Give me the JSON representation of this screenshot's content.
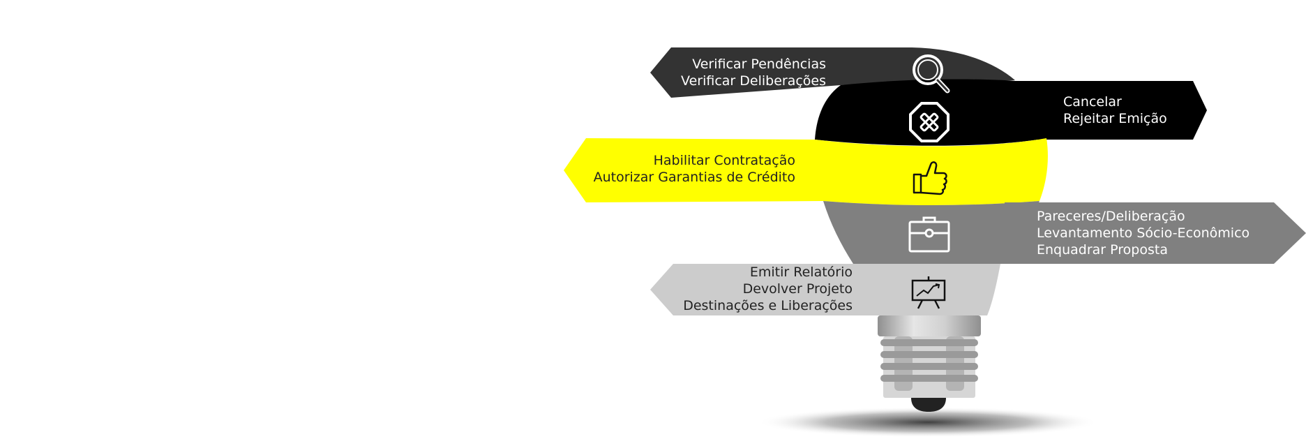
{
  "colors": {
    "band1": "#333333",
    "band2": "#000000",
    "band3": "#ffff00",
    "band4": "#808080",
    "band5": "#cccccc",
    "base_metal": "#bdbdbd"
  },
  "bands": [
    {
      "icon": "magnifier-icon",
      "lines": [
        "Verificar Pendências",
        "Verificar Deliberações"
      ]
    },
    {
      "icon": "cancel-octagon-icon",
      "lines": [
        "Cancelar",
        "Rejeitar Emição"
      ]
    },
    {
      "icon": "thumbs-up-icon",
      "lines": [
        "Habilitar Contratação",
        "Autorizar Garantias de Crédito"
      ]
    },
    {
      "icon": "briefcase-icon",
      "lines": [
        "Pareceres/Deliberação",
        "Levantamento Sócio-Econômico",
        "Enquadrar Proposta"
      ]
    },
    {
      "icon": "presentation-board-icon",
      "lines": [
        "Emitir Relatório",
        "Devolver Projeto",
        "Destinações e Liberações"
      ]
    }
  ]
}
